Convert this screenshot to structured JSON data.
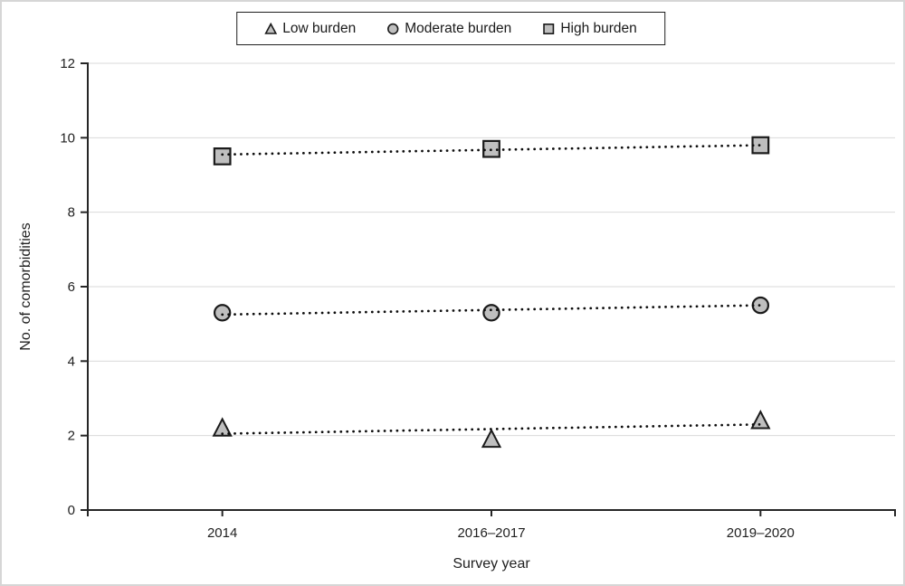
{
  "figure": {
    "background": "#ffffff",
    "border_color": "#d6d6d6"
  },
  "legend": {
    "position": "top-center",
    "items": [
      {
        "label": "Low burden",
        "marker": "triangle"
      },
      {
        "label": "Moderate burden",
        "marker": "circle"
      },
      {
        "label": "High burden",
        "marker": "square"
      }
    ]
  },
  "chart_data": {
    "type": "scatter",
    "categories": [
      "2014",
      "2016–2017",
      "2019–2020"
    ],
    "series": [
      {
        "name": "Low burden",
        "marker": "triangle",
        "values": [
          2.2,
          1.9,
          2.4
        ],
        "trend": {
          "start": 2.05,
          "end": 2.3
        }
      },
      {
        "name": "Moderate burden",
        "marker": "circle",
        "values": [
          5.3,
          5.3,
          5.5
        ],
        "trend": {
          "start": 5.25,
          "end": 5.5
        }
      },
      {
        "name": "High burden",
        "marker": "square",
        "values": [
          9.5,
          9.7,
          9.8
        ],
        "trend": {
          "start": 9.55,
          "end": 9.8
        }
      }
    ],
    "title": "",
    "xlabel": "Survey year",
    "ylabel": "No. of comorbidities",
    "ylim": [
      0,
      12
    ],
    "yticks": [
      0,
      2,
      4,
      6,
      8,
      10,
      12
    ],
    "grid": "horizontal",
    "grid_color": "#d9d9d9",
    "axis_color": "#262626",
    "text_color": "#1f1f1f",
    "marker_fill": "#bfbfbf",
    "marker_stroke": "#1a1a1a",
    "trendline_color": "#0d0d0d",
    "trendline_style": "dotted",
    "legend_position": "top"
  }
}
